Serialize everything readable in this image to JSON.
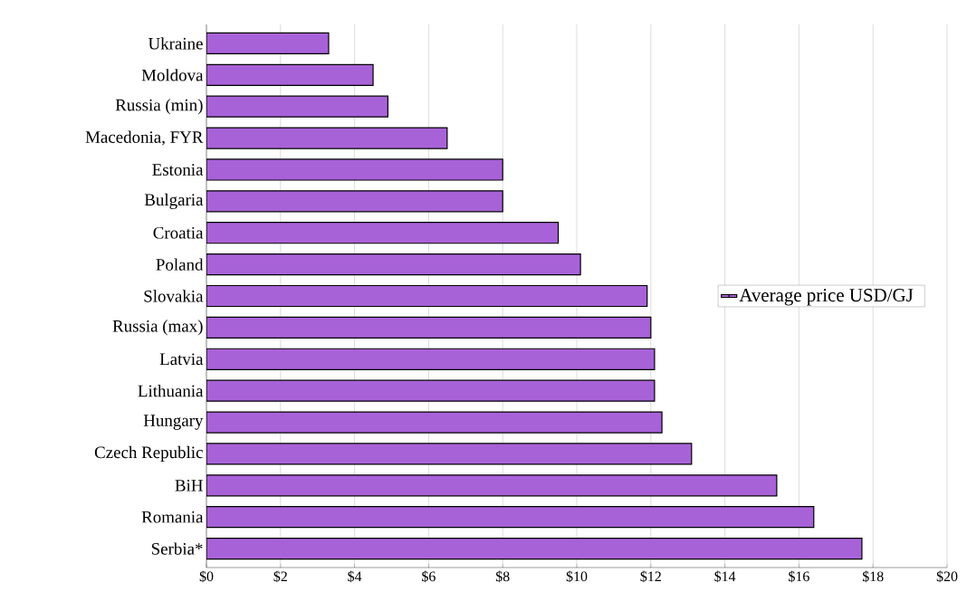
{
  "chart_data": {
    "type": "bar",
    "orientation": "horizontal",
    "categories": [
      "Ukraine",
      "Moldova",
      "Russia (min)",
      "Macedonia, FYR",
      "Estonia",
      "Bulgaria",
      "Croatia",
      "Poland",
      "Slovakia",
      "Russia (max)",
      "Latvia",
      "Lithuania",
      "Hungary",
      "Czech Republic",
      "BiH",
      "Romania",
      "Serbia*"
    ],
    "series": [
      {
        "name": "Average price USD/GJ",
        "color": "#a862d8",
        "values": [
          3.3,
          4.5,
          4.9,
          6.5,
          8.0,
          8.0,
          9.5,
          10.1,
          11.9,
          12.0,
          12.1,
          12.1,
          12.3,
          13.1,
          15.4,
          16.4,
          17.7
        ]
      }
    ],
    "xlim": [
      0,
      20
    ],
    "xticks": [
      {
        "value": 0,
        "label": "$0"
      },
      {
        "value": 2,
        "label": "$2"
      },
      {
        "value": 4,
        "label": "$4"
      },
      {
        "value": 6,
        "label": "$6"
      },
      {
        "value": 8,
        "label": "$8"
      },
      {
        "value": 10,
        "label": "$10"
      },
      {
        "value": 12,
        "label": "$12"
      },
      {
        "value": 14,
        "label": "$14"
      },
      {
        "value": 16,
        "label": "$16"
      },
      {
        "value": 18,
        "label": "$18"
      },
      {
        "value": 20,
        "label": "$20"
      }
    ],
    "grid": "x",
    "legend": "right"
  }
}
